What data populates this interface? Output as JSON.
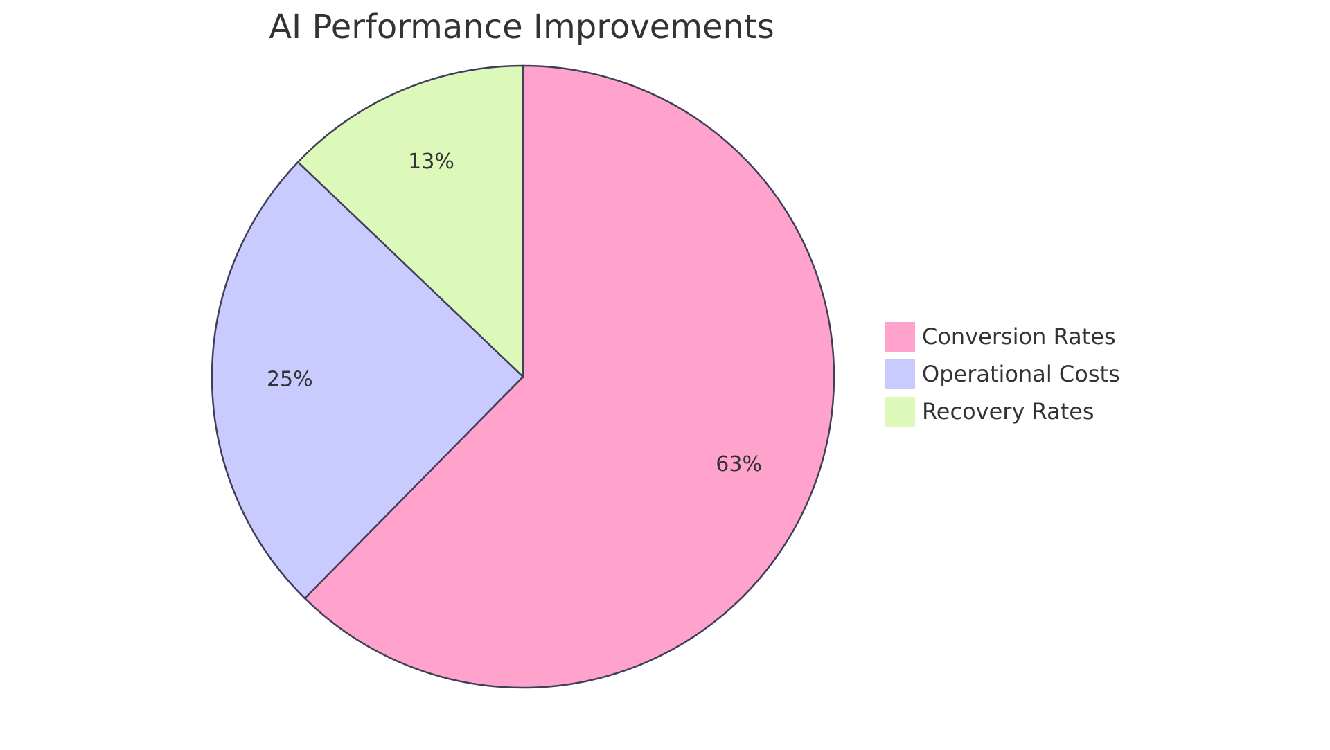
{
  "chart_data": {
    "type": "pie",
    "title": "AI Performance Improvements",
    "categories": [
      "Conversion Rates",
      "Operational Costs",
      "Recovery Rates"
    ],
    "values": [
      63,
      25,
      13
    ],
    "value_labels": [
      "63%",
      "25%",
      "13%"
    ],
    "colors": [
      "#ffa3cc",
      "#c9cbff",
      "#dcf9b9"
    ],
    "legend": "right"
  }
}
